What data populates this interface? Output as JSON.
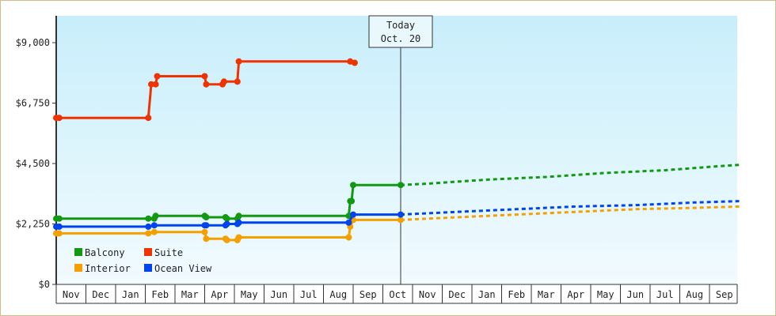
{
  "chart_data": {
    "type": "line",
    "title": "",
    "xlabel": "",
    "ylabel": "",
    "ylim": [
      0,
      10000
    ],
    "y_ticks": [
      "$0",
      "$2,250",
      "$4,500",
      "$6,750",
      "$9,000"
    ],
    "y_tick_values": [
      0,
      2250,
      4500,
      6750,
      9000
    ],
    "x_tick_labels": [
      "Nov",
      "Dec",
      "Jan",
      "Feb",
      "Mar",
      "Apr",
      "May",
      "Jun",
      "Jul",
      "Aug",
      "Sep",
      "Oct",
      "Nov",
      "Dec",
      "Jan",
      "Feb",
      "Mar",
      "Apr",
      "May",
      "Jun",
      "Jul",
      "Aug",
      "Sep"
    ],
    "grid": false,
    "legend_position": "bottom-left",
    "today_marker": {
      "line1": "Today",
      "line2": "Oct. 20",
      "month_index": 11.6
    },
    "series": [
      {
        "name": "Balcony",
        "color": "#119911",
        "step": true,
        "points": [
          [
            0.0,
            2450
          ],
          [
            0.1,
            2450
          ],
          [
            3.1,
            2450
          ],
          [
            3.3,
            2450
          ],
          [
            3.35,
            2550
          ],
          [
            5.0,
            2550
          ],
          [
            5.05,
            2500
          ],
          [
            5.7,
            2500
          ],
          [
            5.75,
            2450
          ],
          [
            6.1,
            2450
          ],
          [
            6.15,
            2550
          ],
          [
            9.85,
            2550
          ],
          [
            9.9,
            3100
          ],
          [
            9.95,
            3100
          ],
          [
            10.0,
            3700
          ],
          [
            11.6,
            3700
          ]
        ],
        "forecast": [
          [
            11.6,
            3700
          ],
          [
            12.5,
            3750
          ],
          [
            14.5,
            3900
          ],
          [
            16.5,
            4000
          ],
          [
            18.5,
            4150
          ],
          [
            20.5,
            4250
          ],
          [
            22.3,
            4400
          ],
          [
            23.0,
            4450
          ]
        ]
      },
      {
        "name": "Suite",
        "color": "#ee3300",
        "step": true,
        "points": [
          [
            0.0,
            6200
          ],
          [
            0.1,
            6200
          ],
          [
            3.1,
            6200
          ],
          [
            3.2,
            7450
          ],
          [
            3.35,
            7450
          ],
          [
            3.4,
            7750
          ],
          [
            5.0,
            7750
          ],
          [
            5.05,
            7450
          ],
          [
            5.6,
            7450
          ],
          [
            5.65,
            7550
          ],
          [
            6.1,
            7550
          ],
          [
            6.15,
            8300
          ],
          [
            9.9,
            8300
          ],
          [
            10.05,
            8250
          ]
        ],
        "forecast": []
      },
      {
        "name": "Interior",
        "color": "#f5a000",
        "step": true,
        "points": [
          [
            0.0,
            1900
          ],
          [
            0.1,
            1900
          ],
          [
            3.1,
            1900
          ],
          [
            3.3,
            1950
          ],
          [
            5.0,
            1950
          ],
          [
            5.05,
            1700
          ],
          [
            5.7,
            1700
          ],
          [
            5.75,
            1650
          ],
          [
            6.1,
            1650
          ],
          [
            6.15,
            1750
          ],
          [
            9.85,
            1750
          ],
          [
            9.9,
            2150
          ],
          [
            10.0,
            2400
          ],
          [
            11.6,
            2400
          ]
        ],
        "forecast": [
          [
            11.6,
            2400
          ],
          [
            13.5,
            2500
          ],
          [
            15.5,
            2600
          ],
          [
            17.5,
            2700
          ],
          [
            19.5,
            2800
          ],
          [
            21.5,
            2850
          ],
          [
            23.0,
            2900
          ]
        ]
      },
      {
        "name": "Ocean View",
        "color": "#0044ee",
        "step": true,
        "points": [
          [
            0.0,
            2150
          ],
          [
            0.1,
            2150
          ],
          [
            3.1,
            2150
          ],
          [
            3.3,
            2200
          ],
          [
            5.0,
            2200
          ],
          [
            5.05,
            2200
          ],
          [
            5.7,
            2200
          ],
          [
            5.75,
            2250
          ],
          [
            6.1,
            2250
          ],
          [
            6.15,
            2300
          ],
          [
            9.85,
            2300
          ],
          [
            10.0,
            2600
          ],
          [
            11.6,
            2600
          ]
        ],
        "forecast": [
          [
            11.6,
            2600
          ],
          [
            13.5,
            2700
          ],
          [
            15.5,
            2800
          ],
          [
            17.5,
            2900
          ],
          [
            19.5,
            2950
          ],
          [
            21.5,
            3050
          ],
          [
            23.0,
            3100
          ]
        ]
      }
    ]
  },
  "colors": {
    "bg_top": "#c8eefb",
    "bg_bottom": "#f2fbfe",
    "axis": "#333333",
    "border": "#d9b98a"
  }
}
